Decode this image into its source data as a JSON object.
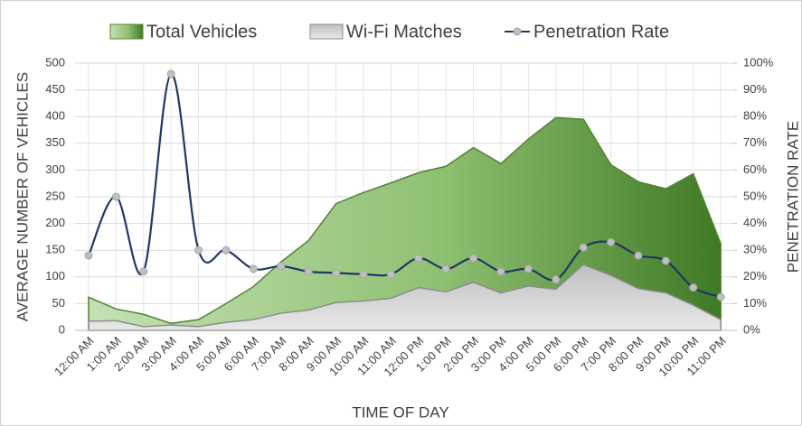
{
  "chart_data": {
    "type": "combo",
    "x_label": "TIME OF DAY",
    "y_label": "AVERAGE NUMBER OF VEHICLES",
    "y2_label": "PENETRATION RATE",
    "legend": "top",
    "grid": true,
    "categories": [
      "12:00 AM",
      "1:00 AM",
      "2:00 AM",
      "3:00 AM",
      "4:00 AM",
      "5:00 AM",
      "6:00 AM",
      "7:00 AM",
      "8:00 AM",
      "9:00 AM",
      "10:00 AM",
      "11:00 AM",
      "12:00 PM",
      "1:00 PM",
      "2:00 PM",
      "3:00 PM",
      "4:00 PM",
      "5:00 PM",
      "6:00 PM",
      "7:00 PM",
      "8:00 PM",
      "9:00 PM",
      "10:00 PM",
      "11:00 PM"
    ],
    "series": [
      {
        "name": "Total Vehicles",
        "type": "area",
        "color": "#548235",
        "values": [
          62,
          40,
          30,
          13,
          20,
          50,
          82,
          128,
          168,
          237,
          258,
          276,
          295,
          307,
          342,
          312,
          358,
          398,
          395,
          310,
          278,
          265,
          293,
          162
        ]
      },
      {
        "name": "Wi-Fi Matches",
        "type": "area",
        "color": "#8c8c8c",
        "values": [
          17,
          18,
          7,
          10,
          7,
          15,
          20,
          32,
          38,
          52,
          55,
          60,
          80,
          72,
          90,
          70,
          83,
          77,
          123,
          103,
          78,
          70,
          47,
          20
        ]
      },
      {
        "name": "Penetration Rate",
        "type": "line",
        "axis": "y2",
        "color": "#1f3864",
        "values": [
          28,
          50,
          22,
          96,
          30,
          30,
          23,
          24,
          22,
          21.5,
          21,
          21,
          27,
          23,
          27,
          22,
          23,
          19,
          31,
          33,
          28,
          26,
          16,
          12.5
        ]
      }
    ],
    "ylim": [
      0,
      500
    ],
    "yticks": [
      0,
      50,
      100,
      150,
      200,
      250,
      300,
      350,
      400,
      450,
      500
    ],
    "y2lim": [
      0,
      100
    ],
    "y2ticks": [
      {
        "value": 0,
        "label": "0%"
      },
      {
        "value": 10,
        "label": "10%"
      },
      {
        "value": 20,
        "label": "20%"
      },
      {
        "value": 30,
        "label": "30%"
      },
      {
        "value": 40,
        "label": "40%"
      },
      {
        "value": 50,
        "label": "50%"
      },
      {
        "value": 60,
        "label": "60%"
      },
      {
        "value": 70,
        "label": "70%"
      },
      {
        "value": 80,
        "label": "80%"
      },
      {
        "value": 90,
        "label": "90%"
      },
      {
        "value": 100,
        "label": "100%"
      }
    ]
  }
}
